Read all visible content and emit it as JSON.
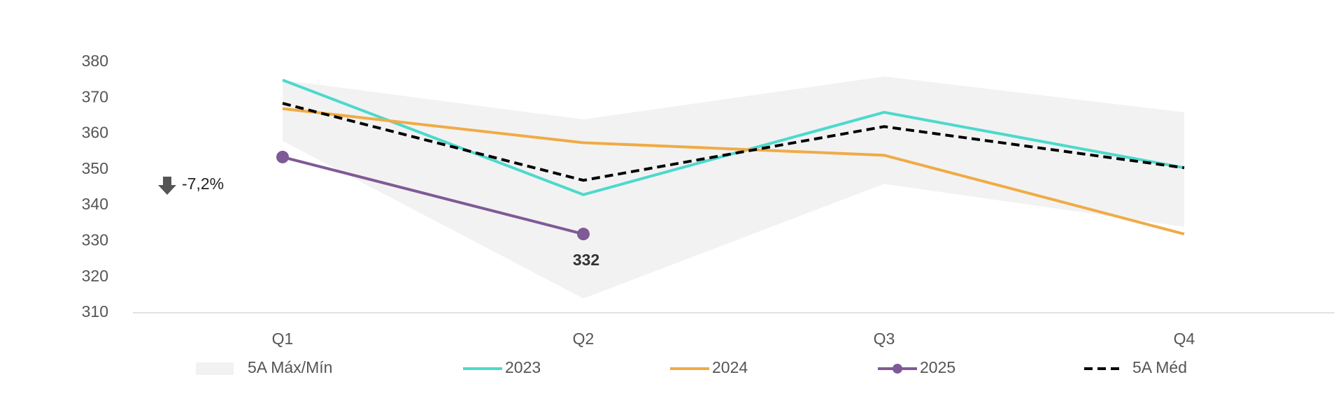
{
  "chart_data": {
    "type": "line",
    "categories": [
      "Q1",
      "Q2",
      "Q3",
      "Q4"
    ],
    "ylim": [
      310,
      380
    ],
    "yticks": [
      310,
      320,
      330,
      340,
      350,
      360,
      370,
      380
    ],
    "band": {
      "name": "5A Máx/Mín",
      "color": "#f2f2f2",
      "upper": [
        375,
        364,
        376,
        366
      ],
      "lower": [
        358,
        314,
        346,
        334
      ]
    },
    "series": [
      {
        "name": "2023",
        "color": "#4dd9cc",
        "values": [
          375,
          343,
          366,
          350.5
        ]
      },
      {
        "name": "2024",
        "color": "#f0ab45",
        "values": [
          367,
          357.5,
          354,
          332
        ]
      },
      {
        "name": "2025",
        "color": "#7f5a96",
        "values": [
          353.5,
          332,
          null,
          null
        ],
        "marker": true,
        "value_label_index": 1
      },
      {
        "name": "5A Méd",
        "color": "#000000",
        "values": [
          368.5,
          347,
          362,
          350.5
        ],
        "dashed": true
      }
    ],
    "annotation": "-7,2%"
  }
}
